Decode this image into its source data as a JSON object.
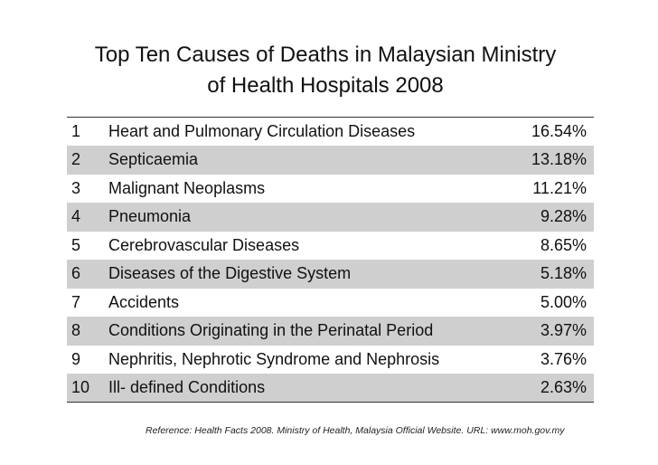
{
  "title": {
    "line1": "Top Ten Causes of Deaths in Malaysian Ministry",
    "line2": "of Health Hospitals 2008"
  },
  "rows": [
    {
      "rank": "1",
      "name": "Heart and Pulmonary Circulation Diseases",
      "pct": "16.54%"
    },
    {
      "rank": "2",
      "name": "Septicaemia",
      "pct": "13.18%"
    },
    {
      "rank": "3",
      "name": "Malignant Neoplasms",
      "pct": "11.21%"
    },
    {
      "rank": "4",
      "name": "Pneumonia",
      "pct": "9.28%"
    },
    {
      "rank": "5",
      "name": "Cerebrovascular Diseases",
      "pct": "8.65%"
    },
    {
      "rank": "6",
      "name": "Diseases of the Digestive System",
      "pct": "5.18%"
    },
    {
      "rank": "7",
      "name": "Accidents",
      "pct": "5.00%"
    },
    {
      "rank": "8",
      "name": "Conditions Originating in the Perinatal Period",
      "pct": "3.97%"
    },
    {
      "rank": "9",
      "name": "Nephritis, Nephrotic Syndrome and Nephrosis",
      "pct": "3.76%"
    },
    {
      "rank": "10",
      "name": "Ill- defined Conditions",
      "pct": "2.63%"
    }
  ],
  "reference": "Reference: Health Facts 2008. Ministry of Health, Malaysia Official Website. URL: www.moh.gov.my",
  "colors": {
    "shaded_row": "#cfcfcf",
    "rule": "#333333"
  }
}
